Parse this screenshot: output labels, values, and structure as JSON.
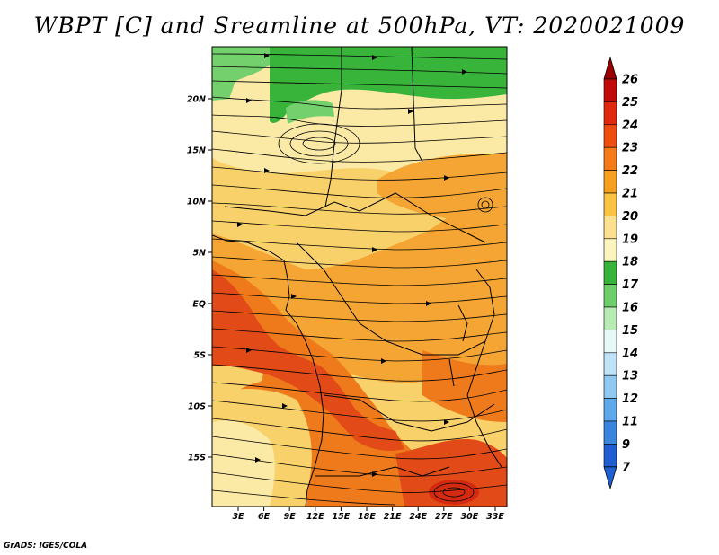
{
  "title": "WBPT [C] and Sreamline at 500hPa, VT: 2020021009",
  "credit": "GrADS: IGES/COLA",
  "lat_labels": [
    "20N",
    "15N",
    "10N",
    "5N",
    "EQ",
    "5S",
    "10S",
    "15S"
  ],
  "lon_labels": [
    "3E",
    "6E",
    "9E",
    "12E",
    "15E",
    "18E",
    "21E",
    "24E",
    "27E",
    "30E",
    "33E"
  ],
  "colorbar": {
    "labels": [
      "26",
      "25",
      "24",
      "23",
      "22",
      "21",
      "20",
      "19",
      "18",
      "17",
      "16",
      "15",
      "14",
      "13",
      "12",
      "11",
      "9",
      "7"
    ],
    "colors": [
      "#9b0000",
      "#c10b0b",
      "#e0280f",
      "#ef4d10",
      "#f57a19",
      "#f7a020",
      "#f9c243",
      "#fbe08f",
      "#fcf3bd",
      "#38b43a",
      "#6dcf6a",
      "#b8ebb3",
      "#e6f8f7",
      "#bfe2f6",
      "#8fc9f2",
      "#5ea9ea",
      "#3a85de",
      "#1f5fd1"
    ]
  },
  "colors": {
    "green_dark": "#38b43a",
    "green_light": "#74d06c",
    "pale_yellow": "#fbeaa6",
    "yellow": "#f9d16b",
    "orange": "#f5a533",
    "dark_orange": "#ef7a1c",
    "red": "#e24b17",
    "deep_red": "#d42a10"
  }
}
